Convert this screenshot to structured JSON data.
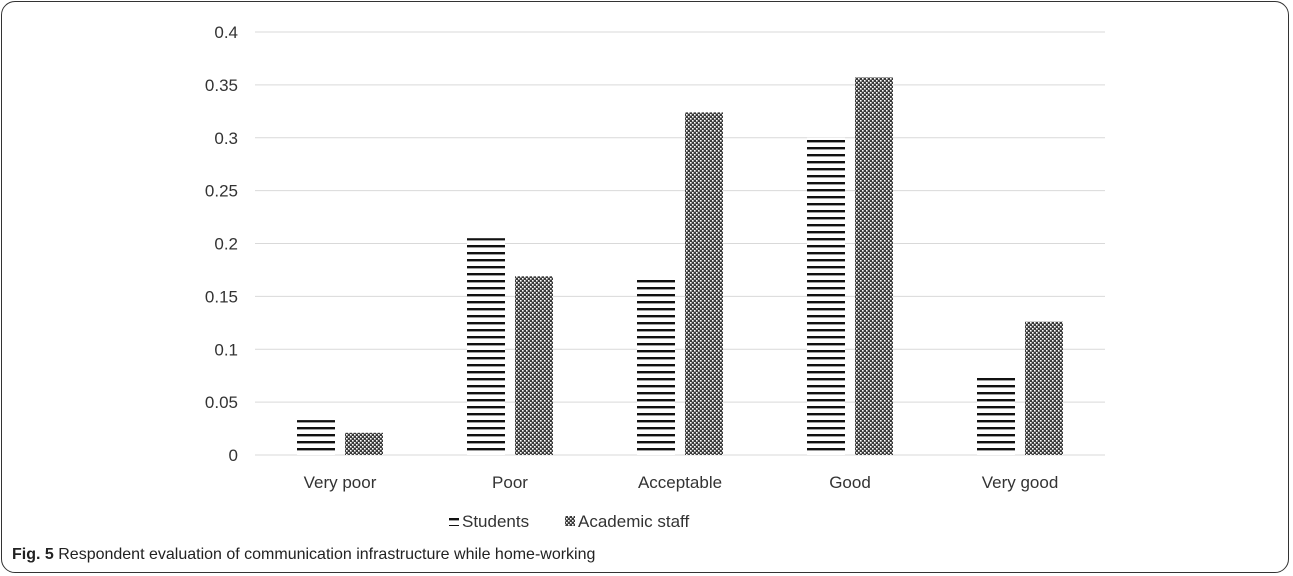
{
  "chart_data": {
    "type": "bar",
    "categories": [
      "Very poor",
      "Poor",
      "Acceptable",
      "Good",
      "Very good"
    ],
    "series": [
      {
        "name": "Students",
        "values": [
          0.033,
          0.205,
          0.167,
          0.3,
          0.077
        ],
        "pattern": "horizontal-lines"
      },
      {
        "name": "Academic staff",
        "values": [
          0.021,
          0.169,
          0.324,
          0.357,
          0.126
        ],
        "pattern": "crosshatch"
      }
    ],
    "ylim": [
      0,
      0.4
    ],
    "yticks": [
      "0",
      "0.05",
      "0.1",
      "0.15",
      "0.2",
      "0.25",
      "0.3",
      "0.35",
      "0.4"
    ],
    "grid": true,
    "legend": "bottom-center",
    "colors": {
      "bar": "#222222",
      "grid": "#d9d9d9",
      "text": "#333333"
    }
  },
  "caption": {
    "label": "Fig. 5",
    "text": "Respondent evaluation of communication infrastructure while home-working"
  }
}
